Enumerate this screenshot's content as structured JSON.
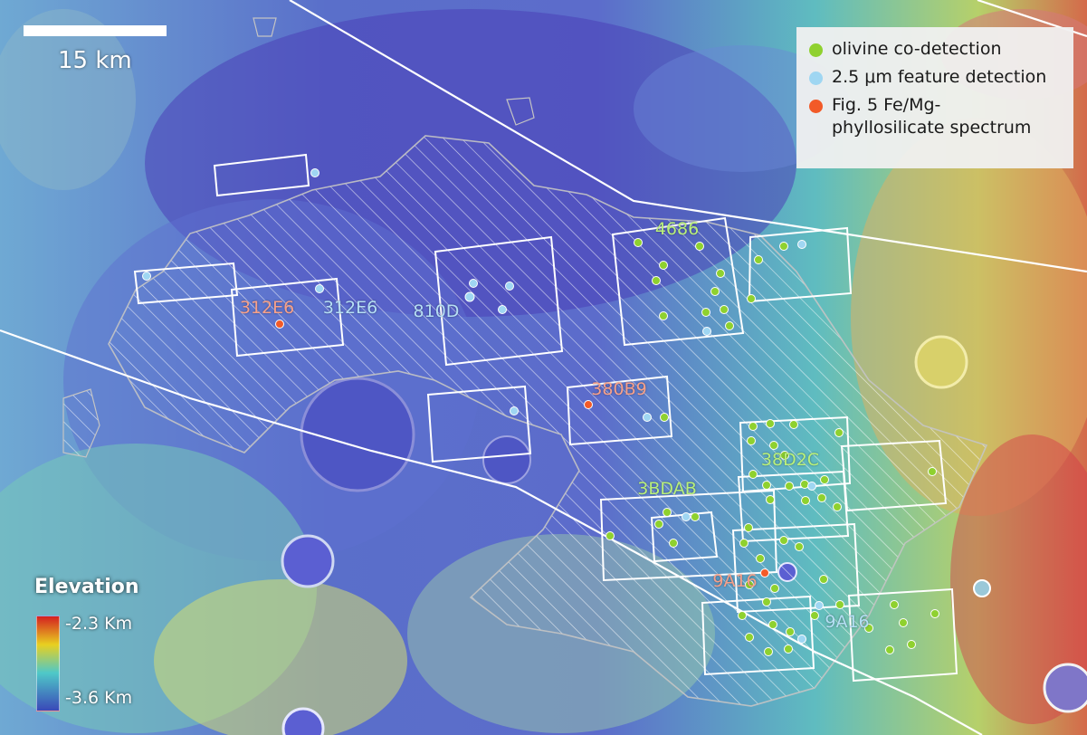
{
  "scale_bar": {
    "label": "15 km"
  },
  "legend": {
    "items": [
      {
        "label": "olivine co-detection",
        "color": "#8fd12f"
      },
      {
        "label": "2.5 μm feature detection",
        "color": "#9fd6f2"
      },
      {
        "label": "Fig. 5 Fe/Mg-\nphyllosilicate spectrum",
        "color": "#f25a28"
      }
    ]
  },
  "elevation": {
    "title": "Elevation",
    "max_label": "-2.3 Km",
    "min_label": "-3.6 Km"
  },
  "footprint_labels": [
    {
      "text": "312E6",
      "color": "#f7a08a"
    },
    {
      "text": "312E6",
      "color": "#b5dff5"
    },
    {
      "text": "810D",
      "color": "#b5dff5"
    },
    {
      "text": "4686",
      "color": "#b9f07a"
    },
    {
      "text": "380B9",
      "color": "#f7a08a"
    },
    {
      "text": "38D2C",
      "color": "#b9f07a"
    },
    {
      "text": "3BDAB",
      "color": "#b9f07a"
    },
    {
      "text": "9A16",
      "color": "#f7a08a"
    },
    {
      "text": "9A16",
      "color": "#b5dff5"
    }
  ],
  "colors": {
    "olivine": "#8fd12f",
    "feature_2_5": "#9fd6f2",
    "phyllosilicate": "#f25a28",
    "footprint_outline": "#ffffff",
    "unit_outline": "#c4c4c4"
  }
}
